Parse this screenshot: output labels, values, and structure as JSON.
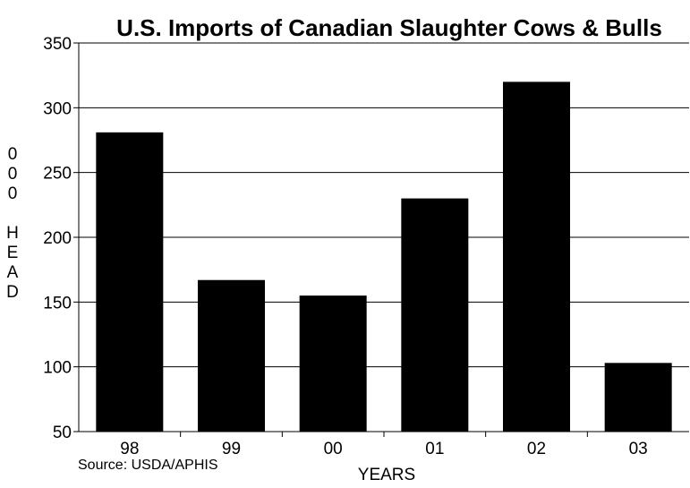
{
  "chart_data": {
    "type": "bar",
    "title": "U.S. Imports of Canadian Slaughter Cows & Bulls",
    "xlabel": "YEARS",
    "ylabel": "000 HEAD",
    "categories": [
      "98",
      "99",
      "00",
      "01",
      "02",
      "03"
    ],
    "values": [
      281,
      167,
      155,
      230,
      320,
      103
    ],
    "ylim": [
      50,
      350
    ],
    "yticks": [
      50,
      100,
      150,
      200,
      250,
      300,
      350
    ],
    "grid": true,
    "bar_color": "#000000",
    "source": "Source: USDA/APHIS"
  }
}
